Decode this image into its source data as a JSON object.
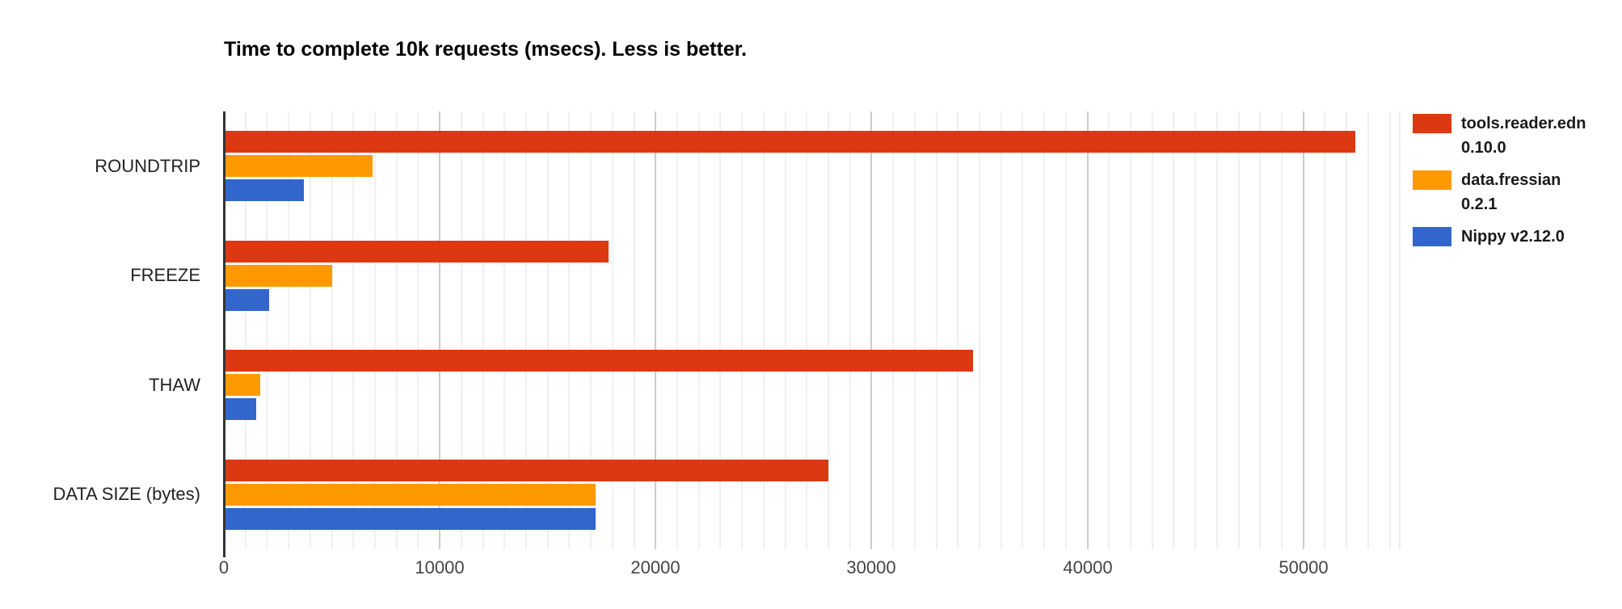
{
  "chart_data": {
    "type": "bar",
    "orientation": "horizontal",
    "title": "Time to complete 10k requests (msecs). Less is better.",
    "categories": [
      "ROUNDTRIP",
      "FREEZE",
      "THAW",
      "DATA SIZE (bytes)"
    ],
    "series": [
      {
        "name": "tools.reader.edn 0.10.0",
        "label_lines": [
          "tools.reader.edn",
          "0.10.0"
        ],
        "color": "#dc3912",
        "values": [
          52400,
          17800,
          34700,
          28000
        ]
      },
      {
        "name": "data.fressian 0.2.1",
        "label_lines": [
          "data.fressian",
          "0.2.1"
        ],
        "color": "#ff9900",
        "values": [
          6900,
          5000,
          1700,
          17200
        ]
      },
      {
        "name": "Nippy v2.12.0",
        "label_lines": [
          "Nippy v2.12.0"
        ],
        "color": "#3366cc",
        "values": [
          3700,
          2100,
          1500,
          17200
        ]
      }
    ],
    "xlabel": "",
    "ylabel": "",
    "x_ticks": [
      0,
      10000,
      20000,
      30000,
      40000,
      50000
    ],
    "x_max": 54500,
    "minor_tick_step": 1000,
    "major_tick_step": 10000,
    "grid": true,
    "legend_position": "right",
    "axis_color": "#333333",
    "minor_grid_color": "#f0f0f0",
    "major_grid_color": "#cccccc",
    "tick_label_color": "#444444",
    "category_label_color": "#222222"
  }
}
